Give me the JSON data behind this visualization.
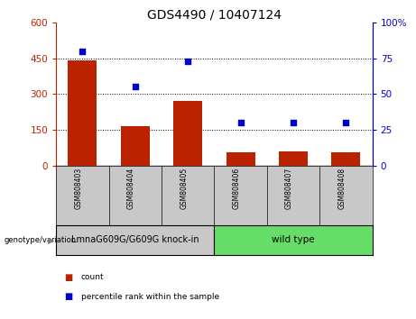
{
  "title": "GDS4490 / 10407124",
  "samples": [
    "GSM808403",
    "GSM808404",
    "GSM808405",
    "GSM808406",
    "GSM808407",
    "GSM808408"
  ],
  "counts": [
    440,
    165,
    270,
    55,
    60,
    55
  ],
  "percentiles": [
    80,
    55,
    73,
    30,
    30,
    30
  ],
  "ylim_left": [
    0,
    600
  ],
  "ylim_right": [
    0,
    100
  ],
  "yticks_left": [
    0,
    150,
    300,
    450,
    600
  ],
  "yticks_right": [
    0,
    25,
    50,
    75,
    100
  ],
  "bar_color": "#bb2200",
  "dot_color": "#0000cc",
  "group1_label": "LmnaG609G/G609G knock-in",
  "group2_label": "wild type",
  "group1_count": 3,
  "group2_count": 3,
  "group1_bg": "#c8c8c8",
  "group2_bg": "#66dd66",
  "sample_cell_bg": "#c8c8c8",
  "legend_count_label": "count",
  "legend_pct_label": "percentile rank within the sample",
  "genotype_label": "genotype/variation",
  "title_fontsize": 10,
  "tick_fontsize": 7.5,
  "label_fontsize": 7,
  "group_fontsize": 7.5
}
